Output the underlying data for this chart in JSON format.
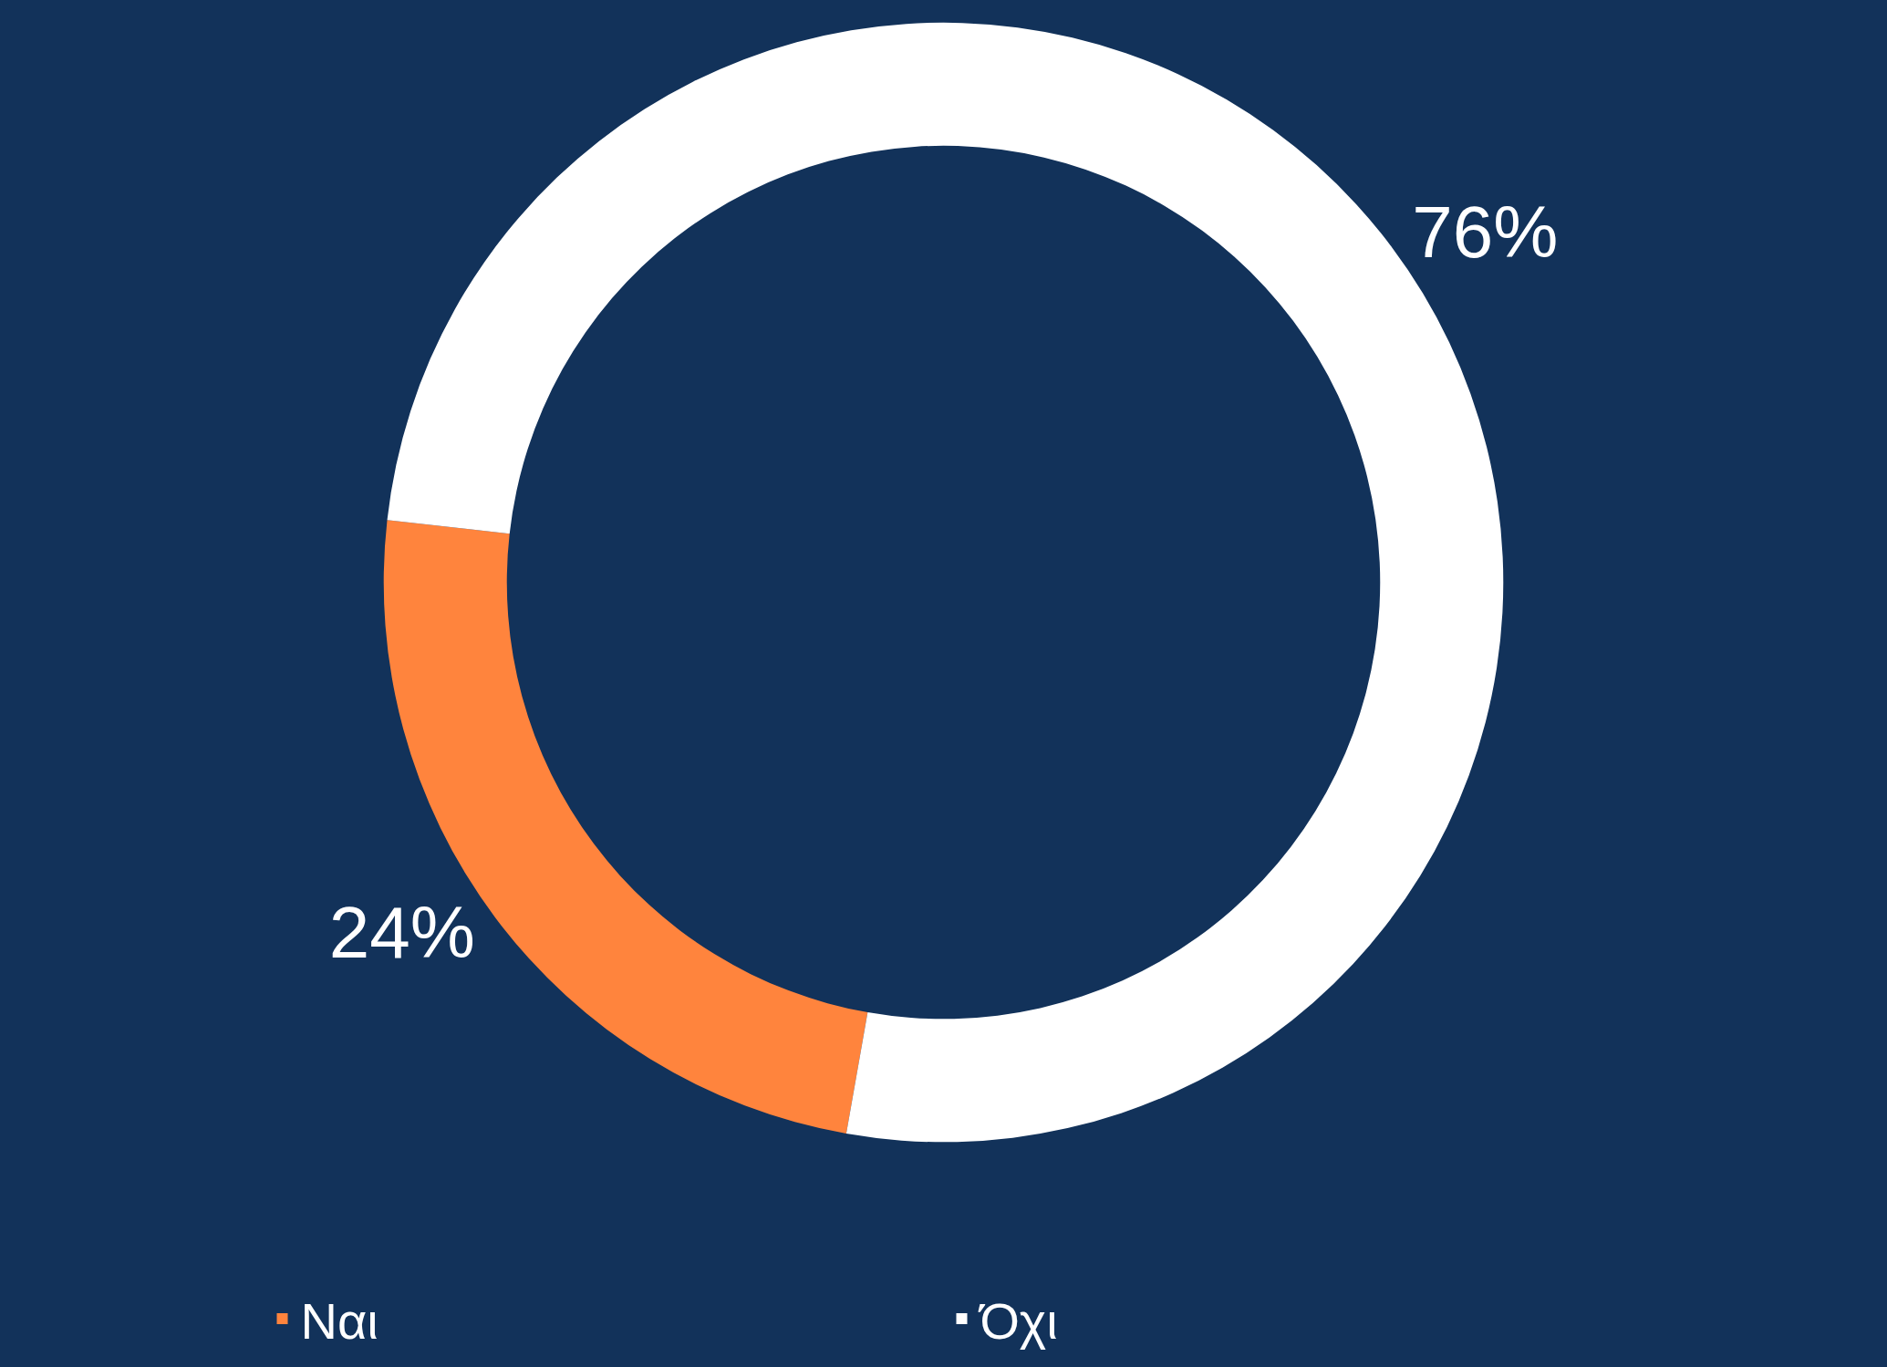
{
  "chart_data": {
    "type": "donut",
    "categories": [
      "Ναι",
      "Όχι"
    ],
    "values": [
      24,
      76
    ],
    "colors": [
      "#ff843d",
      "#ffffff"
    ],
    "value_labels": [
      "24%",
      "76%"
    ],
    "legend": "bottom"
  }
}
